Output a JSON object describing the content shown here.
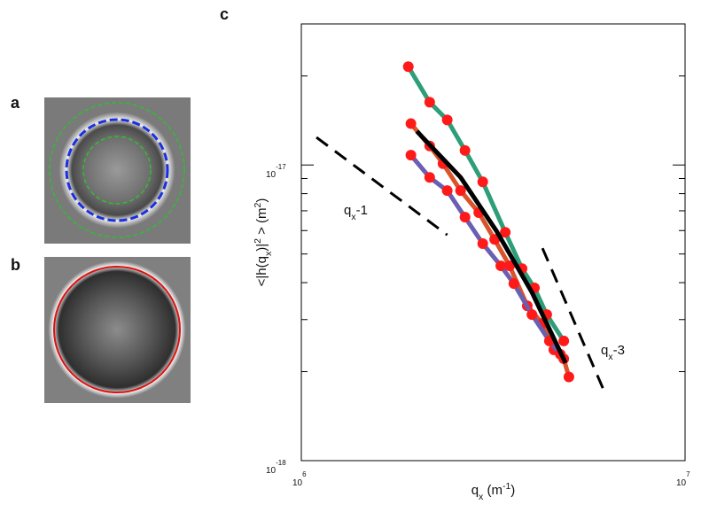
{
  "panel_labels": [
    "a",
    "b",
    "c"
  ],
  "chart_data": {
    "type": "line",
    "xscale": "log",
    "yscale": "log",
    "xlabel": [
      {
        "t": "q"
      },
      {
        "t": "x",
        "sub": true
      },
      {
        "t": " (m"
      },
      {
        "t": "-1",
        "sup": true
      },
      {
        "t": ")"
      }
    ],
    "ylabel": [
      {
        "t": "<|h(q"
      },
      {
        "t": "x",
        "sub": true
      },
      {
        "t": ")|"
      },
      {
        "t": "2",
        "sup": true
      },
      {
        "t": " > (m"
      },
      {
        "t": "2",
        "sup": true
      },
      {
        "t": ")"
      }
    ],
    "xlim": [
      1000000,
      10000000
    ],
    "ylim": [
      1e-18,
      3e-17
    ],
    "xticks": [
      {
        "value": 1000000,
        "label": "10",
        "exponent": "6"
      },
      {
        "value": 10000000,
        "label": "10",
        "exponent": "7"
      }
    ],
    "yticks": [
      {
        "value": 1e-18,
        "label": "10",
        "exponent": "-18"
      },
      {
        "value": 1e-17,
        "label": "10",
        "exponent": "-17"
      }
    ],
    "yminorticks": [
      2e-18,
      3e-18,
      4e-18,
      5e-18,
      6e-18,
      7e-18,
      8e-18,
      9e-18,
      2e-17
    ],
    "marker_color": "#ff1a1a",
    "series": [
      {
        "color": "#2e9e78",
        "markers": true,
        "x": [
          1900000,
          2160000,
          2400000,
          2670000,
          2970000,
          3400000,
          3760000,
          4050000,
          4360000,
          4830000
        ],
        "values": [
          2.15e-17,
          1.63e-17,
          1.42e-17,
          1.12e-17,
          8.77e-18,
          5.92e-18,
          4.46e-18,
          3.84e-18,
          3.12e-18,
          2.54e-18
        ]
      },
      {
        "color": "#d9532b",
        "markers": true,
        "x": [
          1930000,
          2160000,
          2340000,
          2600000,
          2900000,
          3190000,
          3490000,
          3880000,
          4250000,
          4550000,
          4830000,
          4980000
        ],
        "values": [
          1.38e-17,
          1.16e-17,
          1.01e-17,
          8.19e-18,
          6.9e-18,
          5.6e-18,
          4.56e-18,
          3.34e-18,
          2.91e-18,
          2.37e-18,
          2.21e-18,
          1.92e-18
        ]
      },
      {
        "color": "#6a5fb0",
        "markers": true,
        "x": [
          1930000,
          2160000,
          2400000,
          2670000,
          2970000,
          3310000,
          3580000,
          3990000,
          4430000,
          4730000
        ],
        "values": [
          1.08e-17,
          9.08e-18,
          8.19e-18,
          6.66e-18,
          5.42e-18,
          4.56e-18,
          3.97e-18,
          3.12e-18,
          2.54e-18,
          2.29e-18
        ]
      },
      {
        "color": "#000000",
        "markers": false,
        "x": [
          2000000,
          2600000,
          3220000,
          3990000,
          4880000
        ],
        "values": [
          1.3e-17,
          9.08e-18,
          6e-18,
          3.71e-18,
          2.14e-18
        ]
      }
    ],
    "reference_lines": [
      {
        "x": [
          1095000,
          2400000
        ],
        "values": [
          1.24e-17,
          5.8e-18
        ],
        "label": [
          {
            "t": "q"
          },
          {
            "t": "x",
            "sub": true
          },
          {
            "t": "-1"
          }
        ]
      },
      {
        "x": [
          4250000,
          6200000
        ],
        "values": [
          5.23e-18,
          1.68e-18
        ],
        "label": [
          {
            "t": "q"
          },
          {
            "t": "x",
            "sub": true
          },
          {
            "t": "-3"
          }
        ]
      }
    ]
  }
}
